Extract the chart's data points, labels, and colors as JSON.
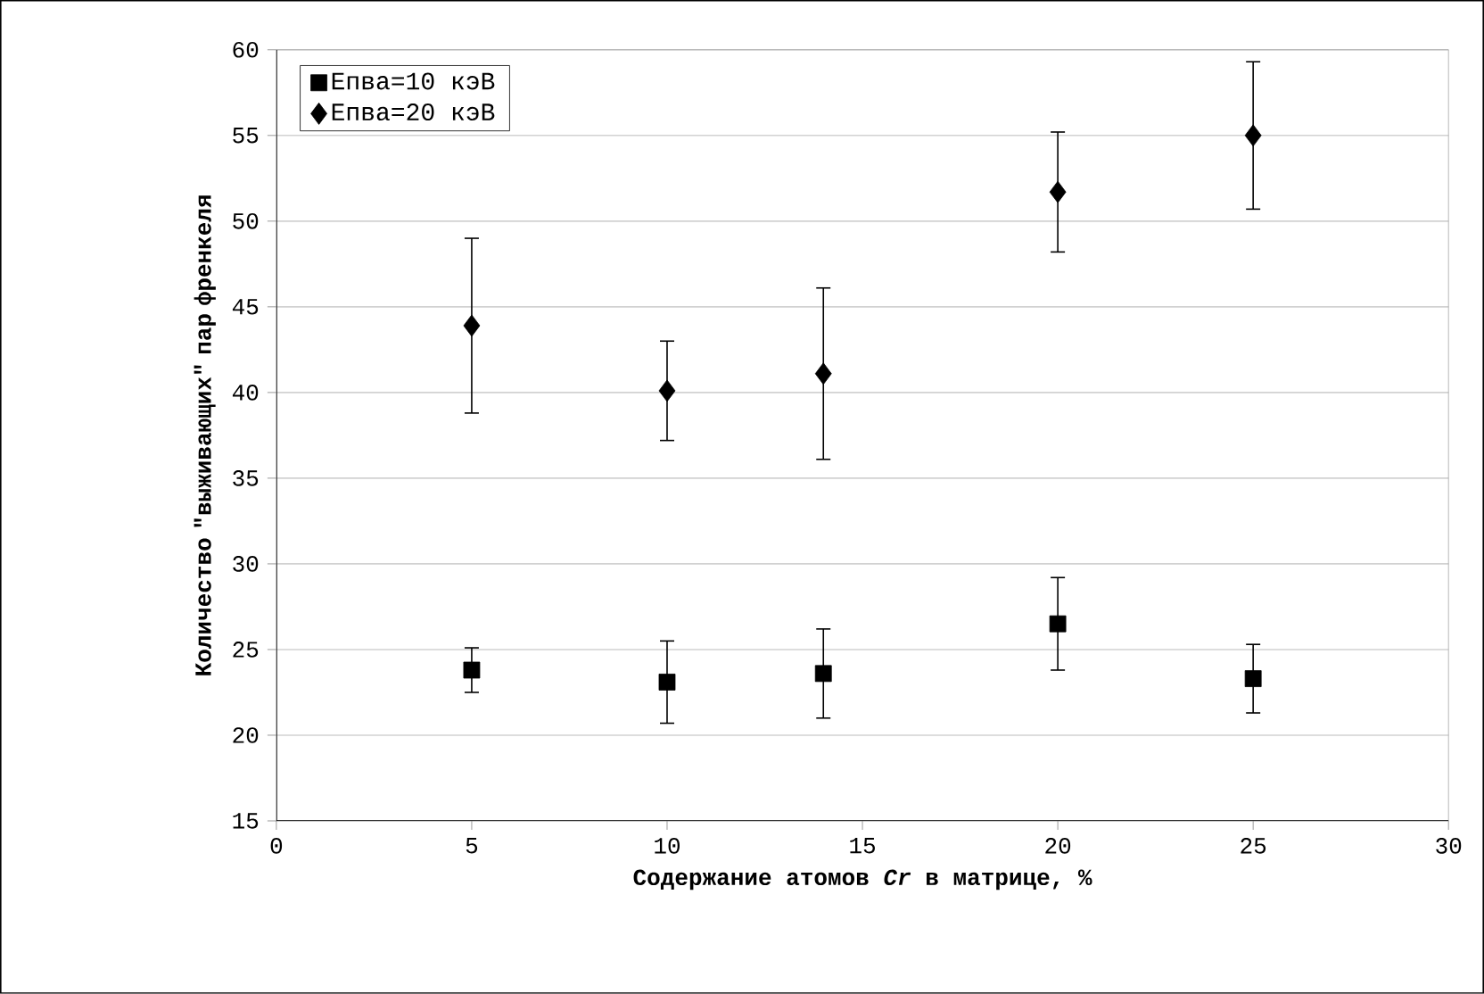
{
  "chart_data": {
    "type": "scatter",
    "xlabel": "Содержание атомов *Cr* в матрице, %",
    "ylabel": "Количество \"выживающих\" пар френкеля",
    "x": [
      5,
      10,
      14,
      20,
      25
    ],
    "series": [
      {
        "name": "Епва=10 кэВ",
        "color": "#000000",
        "marker": "square",
        "values": [
          23.8,
          23.1,
          23.6,
          26.5,
          23.3
        ],
        "errors": [
          1.3,
          2.4,
          2.6,
          2.7,
          2.0
        ]
      },
      {
        "name": "Епва=20 кэВ",
        "color": "#000000",
        "marker": "diamond",
        "values": [
          43.9,
          40.1,
          41.1,
          51.7,
          55.0
        ],
        "errors": [
          5.1,
          2.9,
          5.0,
          3.5,
          4.3
        ]
      }
    ],
    "xlim": [
      0,
      30
    ],
    "xticks": [
      0,
      5,
      10,
      15,
      20,
      25,
      30
    ],
    "ylim": [
      15,
      60
    ],
    "yticks": [
      15,
      20,
      25,
      30,
      35,
      40,
      45,
      50,
      55,
      60
    ],
    "grid": "y",
    "legend": "top left"
  }
}
